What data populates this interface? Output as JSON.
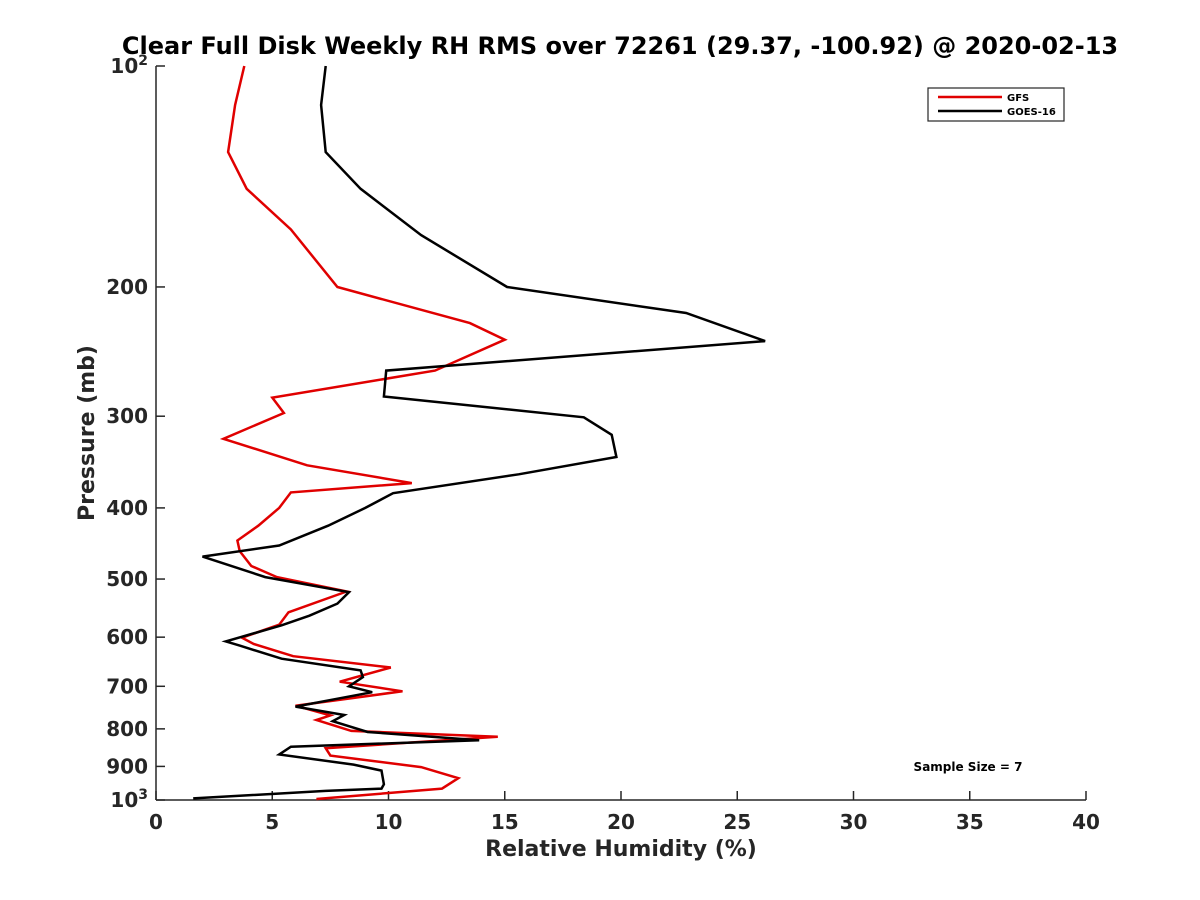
{
  "chart_data": {
    "type": "line",
    "title": "Clear Full Disk Weekly RH RMS over 72261 (29.37, -100.92) @ 2020-02-13",
    "xlabel": "Relative Humidity (%)",
    "ylabel": "Pressure (mb)",
    "xlim": [
      0,
      40
    ],
    "ylim": [
      100,
      1000
    ],
    "yscale": "log",
    "y_reversed": true,
    "xticks": [
      0,
      5,
      10,
      15,
      20,
      25,
      30,
      35,
      40
    ],
    "xtick_labels": [
      "0",
      "5",
      "10",
      "15",
      "20",
      "25",
      "30",
      "35",
      "40"
    ],
    "yticks": [
      100,
      200,
      300,
      400,
      500,
      600,
      700,
      800,
      900,
      1000
    ],
    "ytick_labels": [
      "10^2",
      "200",
      "300",
      "400",
      "500",
      "600",
      "700",
      "800",
      "900",
      "10^3"
    ],
    "grid": false,
    "legend_position": "top-right",
    "annotation": "Sample Size = 7",
    "series": [
      {
        "name": "GFS",
        "color": "#e00000",
        "x": [
          3.8,
          3.4,
          3.1,
          3.9,
          5.8,
          7.8,
          13.5,
          15.0,
          12.0,
          5.0,
          5.5,
          2.9,
          6.5,
          11.0,
          5.8,
          5.3,
          4.4,
          3.5,
          3.6,
          4.1,
          5.2,
          8.2,
          5.7,
          5.3,
          3.7,
          4.2,
          5.9,
          10.1,
          7.9,
          10.6,
          6.0,
          7.5,
          6.9,
          8.4,
          14.7,
          7.3,
          7.5,
          11.4,
          13.0,
          12.3,
          6.9
        ],
        "y": [
          100,
          113,
          131,
          147,
          167,
          200,
          224,
          236,
          260,
          283,
          297,
          322,
          350,
          370,
          381,
          400,
          423,
          443,
          458,
          480,
          497,
          520,
          555,
          577,
          601,
          613,
          637,
          660,
          690,
          711,
          744,
          767,
          778,
          805,
          820,
          850,
          870,
          902,
          934,
          965,
          997
        ]
      },
      {
        "name": "GOES-16",
        "color": "#000000",
        "x": [
          7.3,
          7.1,
          7.3,
          8.8,
          11.4,
          15.1,
          22.8,
          26.2,
          9.9,
          9.8,
          18.4,
          19.6,
          19.8,
          15.6,
          10.2,
          9.0,
          7.4,
          5.3,
          2.0,
          4.7,
          8.3,
          7.8,
          6.6,
          5.4,
          3.0,
          3.6,
          5.4,
          8.8,
          8.9,
          8.3,
          9.3,
          6.0,
          8.1,
          7.6,
          9.1,
          13.9,
          5.8,
          5.3,
          8.5,
          9.7,
          9.8,
          9.7,
          7.3,
          1.6
        ],
        "y": [
          100,
          113,
          131,
          147,
          170,
          200,
          217,
          237,
          260,
          282,
          301,
          318,
          341,
          360,
          382,
          400,
          423,
          450,
          466,
          497,
          521,
          540,
          561,
          578,
          608,
          616,
          642,
          666,
          680,
          700,
          713,
          746,
          766,
          781,
          808,
          829,
          846,
          867,
          895,
          912,
          952,
          965,
          972,
          995
        ]
      }
    ]
  }
}
